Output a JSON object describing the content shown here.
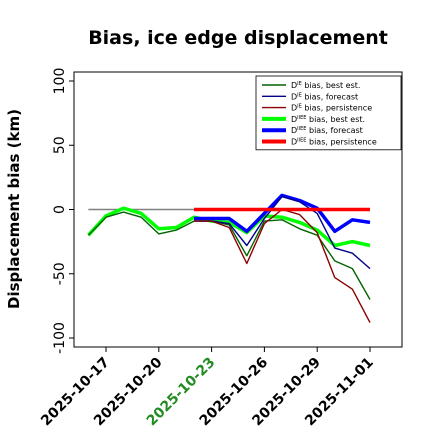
{
  "chart_data": {
    "type": "line",
    "title": "Bias, ice edge displacement",
    "ylabel": "Displacement bias (km)",
    "xlabel": "",
    "ylim": [
      -107,
      107
    ],
    "yticks": [
      100,
      50,
      0,
      -50,
      -100
    ],
    "x_start": "2025-10-16",
    "x_end": "2025-11-02",
    "x_ticks": [
      "2025-10-17",
      "2025-10-20",
      "2025-10-23",
      "2025-10-26",
      "2025-10-29",
      "2025-11-01"
    ],
    "highlight_tick": "2025-10-23",
    "highlight_color": "#228b22",
    "zero_line": {
      "from": "2025-10-16",
      "to": "2025-10-22",
      "color": "#808080"
    },
    "legend_position": "top-right",
    "series": [
      {
        "name": "D^IE bias, best est.",
        "sup": "IE",
        "label_rest": " bias, best est.",
        "color": "#006400",
        "width": 1.4,
        "points": [
          [
            "2025-10-16",
            -20
          ],
          [
            "2025-10-17",
            -6
          ],
          [
            "2025-10-18",
            -2
          ],
          [
            "2025-10-19",
            -6
          ],
          [
            "2025-10-20",
            -19
          ],
          [
            "2025-10-21",
            -16
          ],
          [
            "2025-10-22",
            -9
          ],
          [
            "2025-10-23",
            -9
          ],
          [
            "2025-10-24",
            -12
          ],
          [
            "2025-10-25",
            -36
          ],
          [
            "2025-10-26",
            -9
          ],
          [
            "2025-10-27",
            -8
          ],
          [
            "2025-10-28",
            -15
          ],
          [
            "2025-10-29",
            -20
          ],
          [
            "2025-10-30",
            -40
          ],
          [
            "2025-10-31",
            -46
          ],
          [
            "2025-11-01",
            -70
          ]
        ]
      },
      {
        "name": "D^IE bias, forecast",
        "sup": "IE",
        "label_rest": " bias, forecast",
        "color": "#00008b",
        "width": 1.4,
        "points": [
          [
            "2025-10-22",
            -9
          ],
          [
            "2025-10-23",
            -9
          ],
          [
            "2025-10-24",
            -11
          ],
          [
            "2025-10-25",
            -28
          ],
          [
            "2025-10-26",
            -7
          ],
          [
            "2025-10-27",
            10
          ],
          [
            "2025-10-28",
            6
          ],
          [
            "2025-10-29",
            -3
          ],
          [
            "2025-10-30",
            -30
          ],
          [
            "2025-10-31",
            -34
          ],
          [
            "2025-11-01",
            -46
          ]
        ]
      },
      {
        "name": "D^IE bias, persistence",
        "sup": "IE",
        "label_rest": " bias, persistence",
        "color": "#8b0000",
        "width": 1.4,
        "points": [
          [
            "2025-10-22",
            -9
          ],
          [
            "2025-10-23",
            -9
          ],
          [
            "2025-10-24",
            -14
          ],
          [
            "2025-10-25",
            -42
          ],
          [
            "2025-10-26",
            -11
          ],
          [
            "2025-10-27",
            0
          ],
          [
            "2025-10-28",
            -4
          ],
          [
            "2025-10-29",
            -18
          ],
          [
            "2025-10-30",
            -53
          ],
          [
            "2025-10-31",
            -62
          ],
          [
            "2025-11-01",
            -88
          ]
        ]
      },
      {
        "name": "D^IIEE bias, best est.",
        "sup": "IIEE",
        "label_rest": " bias, best est.",
        "color": "#00ff00",
        "width": 3.5,
        "points": [
          [
            "2025-10-16",
            -20
          ],
          [
            "2025-10-17",
            -5
          ],
          [
            "2025-10-18",
            1
          ],
          [
            "2025-10-19",
            -3
          ],
          [
            "2025-10-20",
            -15
          ],
          [
            "2025-10-21",
            -14
          ],
          [
            "2025-10-22",
            -6
          ],
          [
            "2025-10-23",
            -9
          ],
          [
            "2025-10-24",
            -10
          ],
          [
            "2025-10-25",
            -18
          ],
          [
            "2025-10-26",
            -5
          ],
          [
            "2025-10-27",
            -6
          ],
          [
            "2025-10-28",
            -10
          ],
          [
            "2025-10-29",
            -16
          ],
          [
            "2025-10-30",
            -28
          ],
          [
            "2025-10-31",
            -25
          ],
          [
            "2025-11-01",
            -28
          ]
        ]
      },
      {
        "name": "D^IIEE bias, forecast",
        "sup": "IIEE",
        "label_rest": " bias, forecast",
        "color": "#0000ff",
        "width": 3.5,
        "points": [
          [
            "2025-10-22",
            -7
          ],
          [
            "2025-10-23",
            -7
          ],
          [
            "2025-10-24",
            -7
          ],
          [
            "2025-10-25",
            -17
          ],
          [
            "2025-10-26",
            -3
          ],
          [
            "2025-10-27",
            11
          ],
          [
            "2025-10-28",
            7
          ],
          [
            "2025-10-29",
            1
          ],
          [
            "2025-10-30",
            -17
          ],
          [
            "2025-10-31",
            -8
          ],
          [
            "2025-11-01",
            -10
          ]
        ]
      },
      {
        "name": "D^IIEE bias, persistence",
        "sup": "IIEE",
        "label_rest": " bias, persistence",
        "color": "#ff0000",
        "width": 3.5,
        "points": [
          [
            "2025-10-22",
            0
          ],
          [
            "2025-10-23",
            0
          ],
          [
            "2025-10-24",
            0
          ],
          [
            "2025-10-25",
            0
          ],
          [
            "2025-10-26",
            0
          ],
          [
            "2025-10-27",
            0
          ],
          [
            "2025-10-28",
            0
          ],
          [
            "2025-10-29",
            0
          ],
          [
            "2025-10-30",
            0
          ],
          [
            "2025-10-31",
            0
          ],
          [
            "2025-11-01",
            0
          ]
        ]
      }
    ]
  }
}
